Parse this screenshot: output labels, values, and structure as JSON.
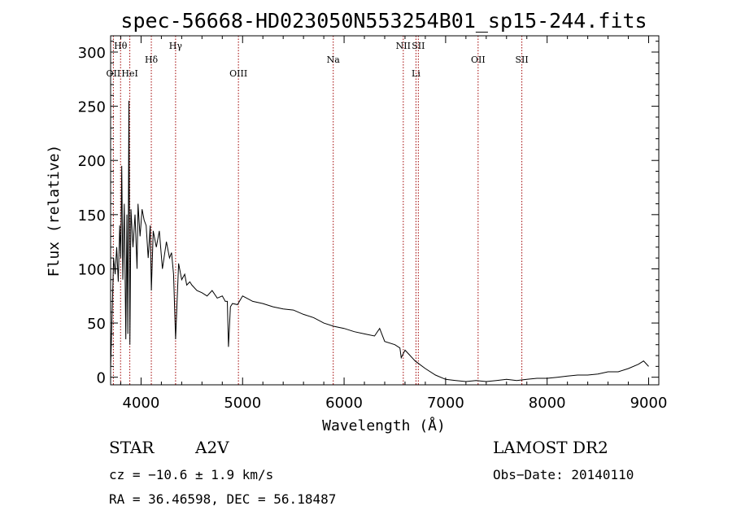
{
  "chart_data": {
    "type": "line",
    "title": "spec-56668-HD023050N553254B01_sp15-244.fits",
    "xlabel": "Wavelength (Å)",
    "ylabel": "Flux (relative)",
    "xlim": [
      3700,
      9100
    ],
    "ylim": [
      -7,
      315
    ],
    "xticks": [
      4000,
      5000,
      6000,
      7000,
      8000,
      9000
    ],
    "yticks": [
      0,
      50,
      100,
      150,
      200,
      250,
      300
    ],
    "series": [
      {
        "x": [
          3700,
          3715,
          3730,
          3745,
          3760,
          3775,
          3790,
          3800,
          3810,
          3820,
          3835,
          3850,
          3860,
          3870,
          3880,
          3890,
          3900,
          3920,
          3940,
          3960,
          3970,
          3990,
          4010,
          4030,
          4050,
          4070,
          4090,
          4101,
          4120,
          4150,
          4180,
          4210,
          4250,
          4280,
          4300,
          4320,
          4340,
          4370,
          4400,
          4430,
          4450,
          4480,
          4500,
          4550,
          4600,
          4650,
          4700,
          4750,
          4800,
          4830,
          4850,
          4861,
          4880,
          4900,
          4950,
          5000,
          5100,
          5200,
          5300,
          5400,
          5500,
          5600,
          5700,
          5800,
          5900,
          6000,
          6100,
          6200,
          6300,
          6350,
          6400,
          6500,
          6550,
          6563,
          6600,
          6650,
          6700,
          6800,
          6900,
          7000,
          7100,
          7200,
          7300,
          7400,
          7500,
          7600,
          7700,
          7800,
          7900,
          8000,
          8100,
          8200,
          8300,
          8400,
          8500,
          8600,
          8700,
          8800,
          8900,
          8950,
          9000
        ],
        "values": [
          8,
          60,
          110,
          95,
          120,
          88,
          140,
          110,
          195,
          90,
          160,
          35,
          150,
          40,
          255,
          30,
          155,
          120,
          150,
          100,
          160,
          130,
          155,
          145,
          140,
          110,
          140,
          80,
          135,
          120,
          135,
          100,
          125,
          110,
          115,
          95,
          35,
          105,
          90,
          95,
          85,
          88,
          85,
          80,
          78,
          75,
          80,
          73,
          75,
          70,
          70,
          28,
          65,
          68,
          67,
          75,
          70,
          68,
          65,
          63,
          62,
          58,
          55,
          50,
          47,
          45,
          42,
          40,
          38,
          45,
          33,
          30,
          27,
          18,
          25,
          20,
          15,
          8,
          2,
          -2,
          -3,
          -4,
          -3,
          -4,
          -3,
          -2,
          -3,
          -2,
          -1,
          -1,
          0,
          1,
          2,
          2,
          3,
          5,
          5,
          8,
          12,
          15,
          10
        ]
      }
    ],
    "lines": [
      {
        "name": "OII",
        "x": 3727,
        "row": 1
      },
      {
        "name": "Hθ",
        "x": 3798,
        "row": 0
      },
      {
        "name": "HeI",
        "x": 3889,
        "row": 1
      },
      {
        "name": "Hδ",
        "x": 4101,
        "row": 2
      },
      {
        "name": "Hγ",
        "x": 4340,
        "row": 3
      },
      {
        "name": "OIII",
        "x": 4959,
        "row": 1
      },
      {
        "name": "Na",
        "x": 5893,
        "row": 2
      },
      {
        "name": "NII",
        "x": 6583,
        "row": 3
      },
      {
        "name": "Li",
        "x": 6708,
        "row": 1
      },
      {
        "name": "SII",
        "x": 6731,
        "row": 3
      },
      {
        "name": "OII",
        "x": 7320,
        "row": 2
      },
      {
        "name": "SII",
        "x": 7751,
        "row": 2
      }
    ]
  },
  "info": {
    "object_class": "STAR",
    "subclass": "A2V",
    "survey": "LAMOST DR2",
    "redshift": "cz = −10.6 ± 1.9 km/s",
    "obs_date": "Obs−Date: 20140110",
    "coords": "RA =  36.46598, DEC =  56.18487"
  }
}
